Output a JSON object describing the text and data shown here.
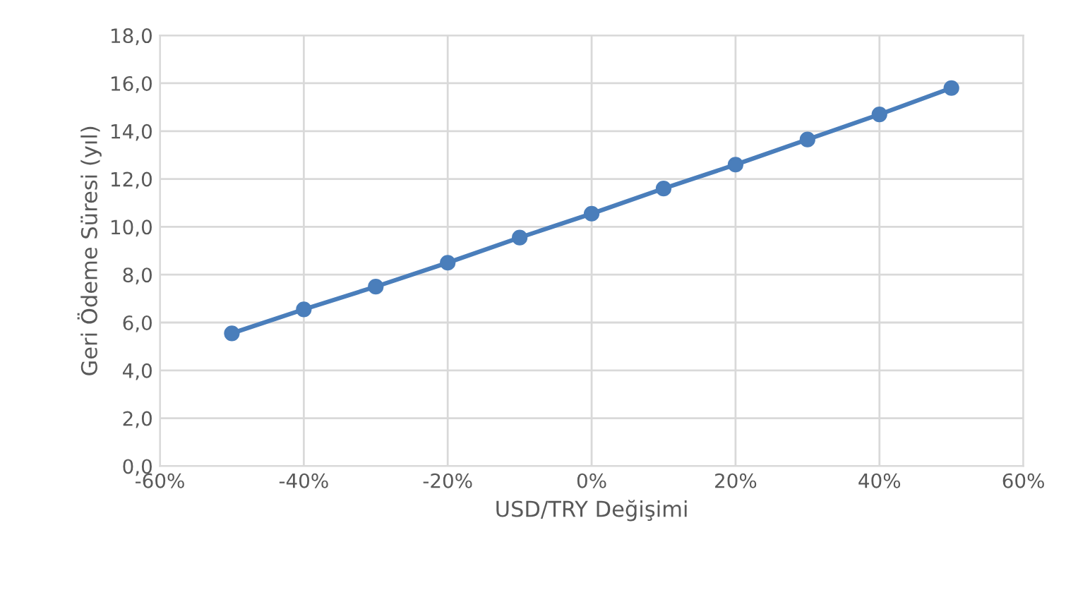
{
  "chart_data": {
    "type": "line",
    "xlabel": "USD/TRY Değişimi",
    "ylabel": "Geri Ödeme Süresi (yıl)",
    "x": [
      -50,
      -40,
      -30,
      -20,
      -10,
      0,
      10,
      20,
      30,
      40,
      50
    ],
    "series": [
      {
        "color": "#4a7ebb",
        "values": [
          5.55,
          6.55,
          7.5,
          8.5,
          9.55,
          10.55,
          11.6,
          12.6,
          13.65,
          14.7,
          15.8
        ]
      }
    ],
    "xlim": [
      -60,
      60
    ],
    "xticks": [
      {
        "value": -60,
        "label": "-60%"
      },
      {
        "value": -40,
        "label": "-40%"
      },
      {
        "value": -20,
        "label": "-20%"
      },
      {
        "value": 0,
        "label": "0%"
      },
      {
        "value": 20,
        "label": "20%"
      },
      {
        "value": 40,
        "label": "40%"
      },
      {
        "value": 60,
        "label": "60%"
      }
    ],
    "ylim": [
      0,
      18
    ],
    "yticks": [
      {
        "value": 0,
        "label": "0,0"
      },
      {
        "value": 2,
        "label": "2,0"
      },
      {
        "value": 4,
        "label": "4,0"
      },
      {
        "value": 6,
        "label": "6,0"
      },
      {
        "value": 8,
        "label": "8,0"
      },
      {
        "value": 10,
        "label": "10,0"
      },
      {
        "value": 12,
        "label": "12,0"
      },
      {
        "value": 14,
        "label": "14,0"
      },
      {
        "value": 16,
        "label": "16,0"
      },
      {
        "value": 18,
        "label": "18,0"
      }
    ],
    "grid": true,
    "marker": "circle",
    "line_style": "solid",
    "legend": false
  }
}
